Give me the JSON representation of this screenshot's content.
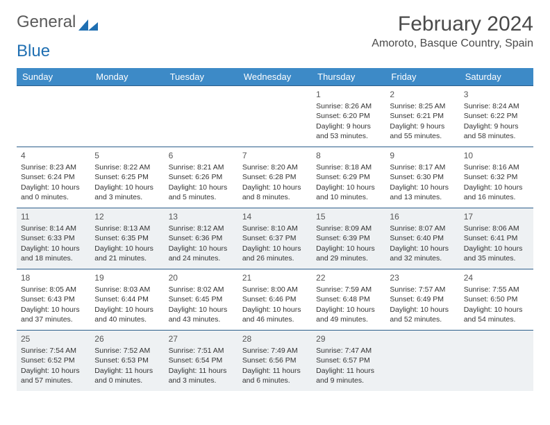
{
  "logo": {
    "text1": "General",
    "text2": "Blue"
  },
  "title": "February 2024",
  "location": "Amoroto, Basque Country, Spain",
  "header_bg": "#3d8ac7",
  "header_fg": "#ffffff",
  "divider_color": "#2a5d8a",
  "alt_row_bg": "#eef1f3",
  "text_color": "#333333",
  "day_headers": [
    "Sunday",
    "Monday",
    "Tuesday",
    "Wednesday",
    "Thursday",
    "Friday",
    "Saturday"
  ],
  "weeks": [
    {
      "alt": false,
      "days": [
        null,
        null,
        null,
        null,
        {
          "n": "1",
          "sunrise": "Sunrise: 8:26 AM",
          "sunset": "Sunset: 6:20 PM",
          "daylight": "Daylight: 9 hours and 53 minutes."
        },
        {
          "n": "2",
          "sunrise": "Sunrise: 8:25 AM",
          "sunset": "Sunset: 6:21 PM",
          "daylight": "Daylight: 9 hours and 55 minutes."
        },
        {
          "n": "3",
          "sunrise": "Sunrise: 8:24 AM",
          "sunset": "Sunset: 6:22 PM",
          "daylight": "Daylight: 9 hours and 58 minutes."
        }
      ]
    },
    {
      "alt": false,
      "days": [
        {
          "n": "4",
          "sunrise": "Sunrise: 8:23 AM",
          "sunset": "Sunset: 6:24 PM",
          "daylight": "Daylight: 10 hours and 0 minutes."
        },
        {
          "n": "5",
          "sunrise": "Sunrise: 8:22 AM",
          "sunset": "Sunset: 6:25 PM",
          "daylight": "Daylight: 10 hours and 3 minutes."
        },
        {
          "n": "6",
          "sunrise": "Sunrise: 8:21 AM",
          "sunset": "Sunset: 6:26 PM",
          "daylight": "Daylight: 10 hours and 5 minutes."
        },
        {
          "n": "7",
          "sunrise": "Sunrise: 8:20 AM",
          "sunset": "Sunset: 6:28 PM",
          "daylight": "Daylight: 10 hours and 8 minutes."
        },
        {
          "n": "8",
          "sunrise": "Sunrise: 8:18 AM",
          "sunset": "Sunset: 6:29 PM",
          "daylight": "Daylight: 10 hours and 10 minutes."
        },
        {
          "n": "9",
          "sunrise": "Sunrise: 8:17 AM",
          "sunset": "Sunset: 6:30 PM",
          "daylight": "Daylight: 10 hours and 13 minutes."
        },
        {
          "n": "10",
          "sunrise": "Sunrise: 8:16 AM",
          "sunset": "Sunset: 6:32 PM",
          "daylight": "Daylight: 10 hours and 16 minutes."
        }
      ]
    },
    {
      "alt": true,
      "days": [
        {
          "n": "11",
          "sunrise": "Sunrise: 8:14 AM",
          "sunset": "Sunset: 6:33 PM",
          "daylight": "Daylight: 10 hours and 18 minutes."
        },
        {
          "n": "12",
          "sunrise": "Sunrise: 8:13 AM",
          "sunset": "Sunset: 6:35 PM",
          "daylight": "Daylight: 10 hours and 21 minutes."
        },
        {
          "n": "13",
          "sunrise": "Sunrise: 8:12 AM",
          "sunset": "Sunset: 6:36 PM",
          "daylight": "Daylight: 10 hours and 24 minutes."
        },
        {
          "n": "14",
          "sunrise": "Sunrise: 8:10 AM",
          "sunset": "Sunset: 6:37 PM",
          "daylight": "Daylight: 10 hours and 26 minutes."
        },
        {
          "n": "15",
          "sunrise": "Sunrise: 8:09 AM",
          "sunset": "Sunset: 6:39 PM",
          "daylight": "Daylight: 10 hours and 29 minutes."
        },
        {
          "n": "16",
          "sunrise": "Sunrise: 8:07 AM",
          "sunset": "Sunset: 6:40 PM",
          "daylight": "Daylight: 10 hours and 32 minutes."
        },
        {
          "n": "17",
          "sunrise": "Sunrise: 8:06 AM",
          "sunset": "Sunset: 6:41 PM",
          "daylight": "Daylight: 10 hours and 35 minutes."
        }
      ]
    },
    {
      "alt": false,
      "days": [
        {
          "n": "18",
          "sunrise": "Sunrise: 8:05 AM",
          "sunset": "Sunset: 6:43 PM",
          "daylight": "Daylight: 10 hours and 37 minutes."
        },
        {
          "n": "19",
          "sunrise": "Sunrise: 8:03 AM",
          "sunset": "Sunset: 6:44 PM",
          "daylight": "Daylight: 10 hours and 40 minutes."
        },
        {
          "n": "20",
          "sunrise": "Sunrise: 8:02 AM",
          "sunset": "Sunset: 6:45 PM",
          "daylight": "Daylight: 10 hours and 43 minutes."
        },
        {
          "n": "21",
          "sunrise": "Sunrise: 8:00 AM",
          "sunset": "Sunset: 6:46 PM",
          "daylight": "Daylight: 10 hours and 46 minutes."
        },
        {
          "n": "22",
          "sunrise": "Sunrise: 7:59 AM",
          "sunset": "Sunset: 6:48 PM",
          "daylight": "Daylight: 10 hours and 49 minutes."
        },
        {
          "n": "23",
          "sunrise": "Sunrise: 7:57 AM",
          "sunset": "Sunset: 6:49 PM",
          "daylight": "Daylight: 10 hours and 52 minutes."
        },
        {
          "n": "24",
          "sunrise": "Sunrise: 7:55 AM",
          "sunset": "Sunset: 6:50 PM",
          "daylight": "Daylight: 10 hours and 54 minutes."
        }
      ]
    },
    {
      "alt": true,
      "days": [
        {
          "n": "25",
          "sunrise": "Sunrise: 7:54 AM",
          "sunset": "Sunset: 6:52 PM",
          "daylight": "Daylight: 10 hours and 57 minutes."
        },
        {
          "n": "26",
          "sunrise": "Sunrise: 7:52 AM",
          "sunset": "Sunset: 6:53 PM",
          "daylight": "Daylight: 11 hours and 0 minutes."
        },
        {
          "n": "27",
          "sunrise": "Sunrise: 7:51 AM",
          "sunset": "Sunset: 6:54 PM",
          "daylight": "Daylight: 11 hours and 3 minutes."
        },
        {
          "n": "28",
          "sunrise": "Sunrise: 7:49 AM",
          "sunset": "Sunset: 6:56 PM",
          "daylight": "Daylight: 11 hours and 6 minutes."
        },
        {
          "n": "29",
          "sunrise": "Sunrise: 7:47 AM",
          "sunset": "Sunset: 6:57 PM",
          "daylight": "Daylight: 11 hours and 9 minutes."
        },
        null,
        null
      ]
    }
  ]
}
